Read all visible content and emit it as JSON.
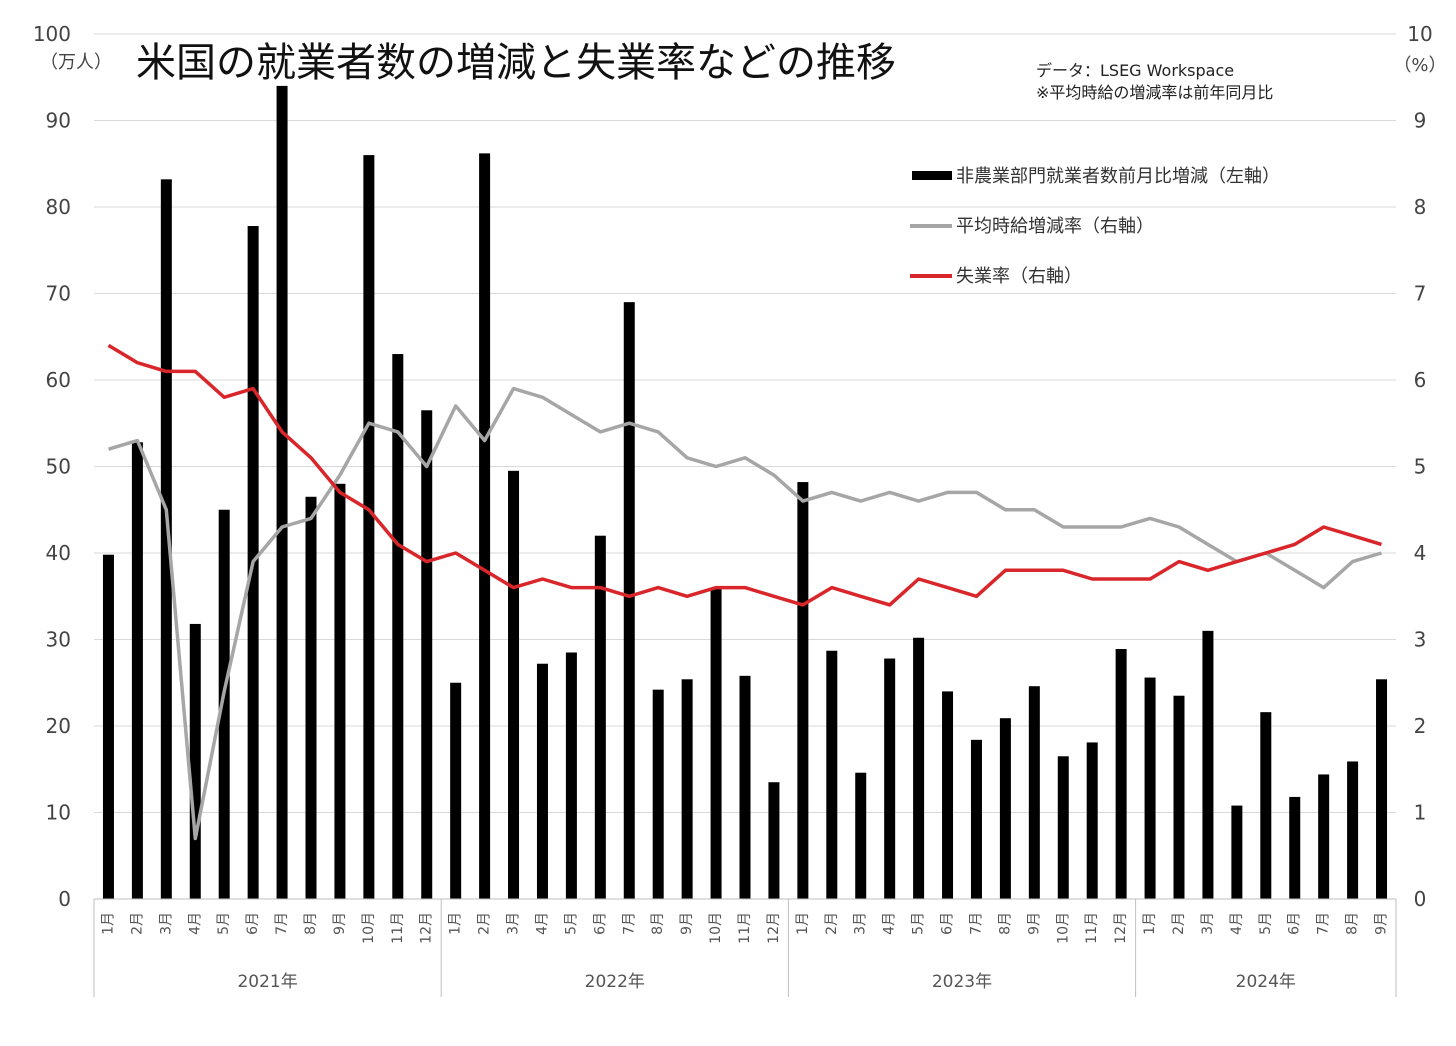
{
  "chart_data": {
    "type": "bar",
    "title": "米国の就業者数の増減と失業率などの推移",
    "source_note": "データ：LSEG Workspace",
    "footnote": "※平均時給の増減率は前年同月比",
    "left_axis": {
      "unit": "（万人）",
      "ticks": [
        "0",
        "10",
        "20",
        "30",
        "40",
        "50",
        "60",
        "70",
        "80",
        "90",
        "100"
      ],
      "range": [
        0,
        100
      ]
    },
    "right_axis": {
      "unit": "（%）",
      "ticks": [
        "0",
        "1",
        "2",
        "3",
        "4",
        "5",
        "6",
        "7",
        "8",
        "9",
        "10"
      ],
      "range": [
        0,
        10
      ]
    },
    "categories": [
      "1月",
      "2月",
      "3月",
      "4月",
      "5月",
      "6月",
      "7月",
      "8月",
      "9月",
      "10月",
      "11月",
      "12月",
      "1月",
      "2月",
      "3月",
      "4月",
      "5月",
      "6月",
      "7月",
      "8月",
      "9月",
      "10月",
      "11月",
      "12月",
      "1月",
      "2月",
      "3月",
      "4月",
      "5月",
      "6月",
      "7月",
      "8月",
      "9月",
      "10月",
      "11月",
      "12月",
      "1月",
      "2月",
      "3月",
      "4月",
      "5月",
      "6月",
      "7月",
      "8月",
      "9月"
    ],
    "years": [
      {
        "label": "2021年",
        "count": 12
      },
      {
        "label": "2022年",
        "count": 12
      },
      {
        "label": "2023年",
        "count": 12
      },
      {
        "label": "2024年",
        "count": 9
      }
    ],
    "series": [
      {
        "name": "非農業部門就業者数前月比増減（左軸）",
        "kind": "bar",
        "axis": "left",
        "color": "#000000",
        "values": [
          39.8,
          52.8,
          83.2,
          31.8,
          45.0,
          77.8,
          94.0,
          46.5,
          48.0,
          86.0,
          63.0,
          56.5,
          25.0,
          86.2,
          49.5,
          27.2,
          28.5,
          42.0,
          69.0,
          24.2,
          25.4,
          35.9,
          25.8,
          13.5,
          48.2,
          28.7,
          14.6,
          27.8,
          30.2,
          24.0,
          18.4,
          20.9,
          24.6,
          16.5,
          18.1,
          28.9,
          25.6,
          23.5,
          31.0,
          10.8,
          21.6,
          11.8,
          14.4,
          15.9,
          25.4
        ]
      },
      {
        "name": "平均時給増減率（右軸）",
        "kind": "line",
        "axis": "right",
        "color": "#a6a6a6",
        "values": [
          5.2,
          5.3,
          4.5,
          0.7,
          2.4,
          3.9,
          4.3,
          4.4,
          4.9,
          5.5,
          5.4,
          5.0,
          5.7,
          5.3,
          5.9,
          5.8,
          5.6,
          5.4,
          5.5,
          5.4,
          5.1,
          5.0,
          5.1,
          4.9,
          4.6,
          4.7,
          4.6,
          4.7,
          4.6,
          4.7,
          4.7,
          4.5,
          4.5,
          4.3,
          4.3,
          4.3,
          4.4,
          4.3,
          4.1,
          3.9,
          4.0,
          3.8,
          3.6,
          3.9,
          4.0
        ]
      },
      {
        "name": "失業率（右軸）",
        "kind": "line",
        "axis": "right",
        "color": "#d9262b",
        "values": [
          6.4,
          6.2,
          6.1,
          6.1,
          5.8,
          5.9,
          5.4,
          5.1,
          4.7,
          4.5,
          4.1,
          3.9,
          4.0,
          3.8,
          3.6,
          3.7,
          3.6,
          3.6,
          3.5,
          3.6,
          3.5,
          3.6,
          3.6,
          3.5,
          3.4,
          3.6,
          3.5,
          3.4,
          3.7,
          3.6,
          3.5,
          3.8,
          3.8,
          3.8,
          3.7,
          3.7,
          3.7,
          3.9,
          3.8,
          3.9,
          4.0,
          4.1,
          4.3,
          4.2,
          4.1
        ]
      }
    ],
    "grid": true,
    "legend_position": "top-right"
  }
}
